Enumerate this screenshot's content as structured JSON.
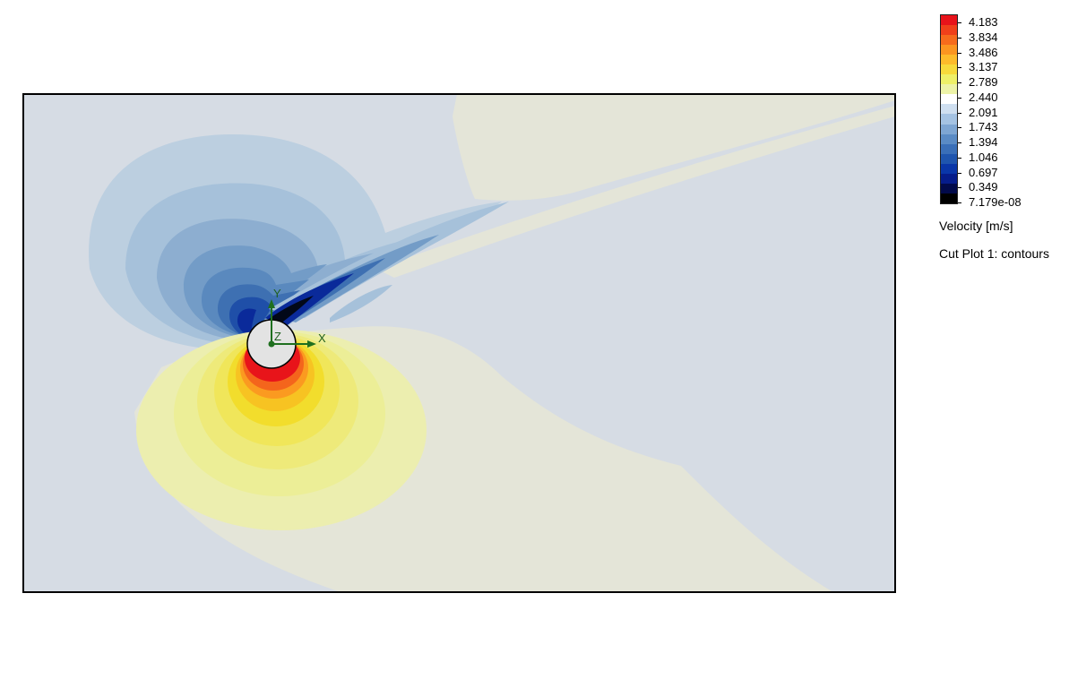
{
  "legend": {
    "ticks": [
      "4.183",
      "3.834",
      "3.486",
      "3.137",
      "2.789",
      "2.440",
      "2.091",
      "1.743",
      "1.394",
      "1.046",
      "0.697",
      "0.349",
      "7.179e-08"
    ],
    "title": "Velocity [m/s]",
    "subtitle": "Cut Plot 1: contours",
    "colors": [
      "#e8131a",
      "#f0401a",
      "#f66b1c",
      "#fb9520",
      "#fdbb2a",
      "#f7da3b",
      "#eef068",
      "#edf3a8",
      "#ffffff",
      "#cfdff0",
      "#a5c3e3",
      "#7ea6d3",
      "#5a8bc5",
      "#3a6fb8",
      "#1f55ae",
      "#0a36a8",
      "#061c8a",
      "#020a4a",
      "#000000"
    ]
  },
  "axes": {
    "x": "X",
    "y": "Y",
    "z": "Z"
  },
  "field": {
    "background_color": "#d5dce6",
    "far_field_value": 2.0
  }
}
